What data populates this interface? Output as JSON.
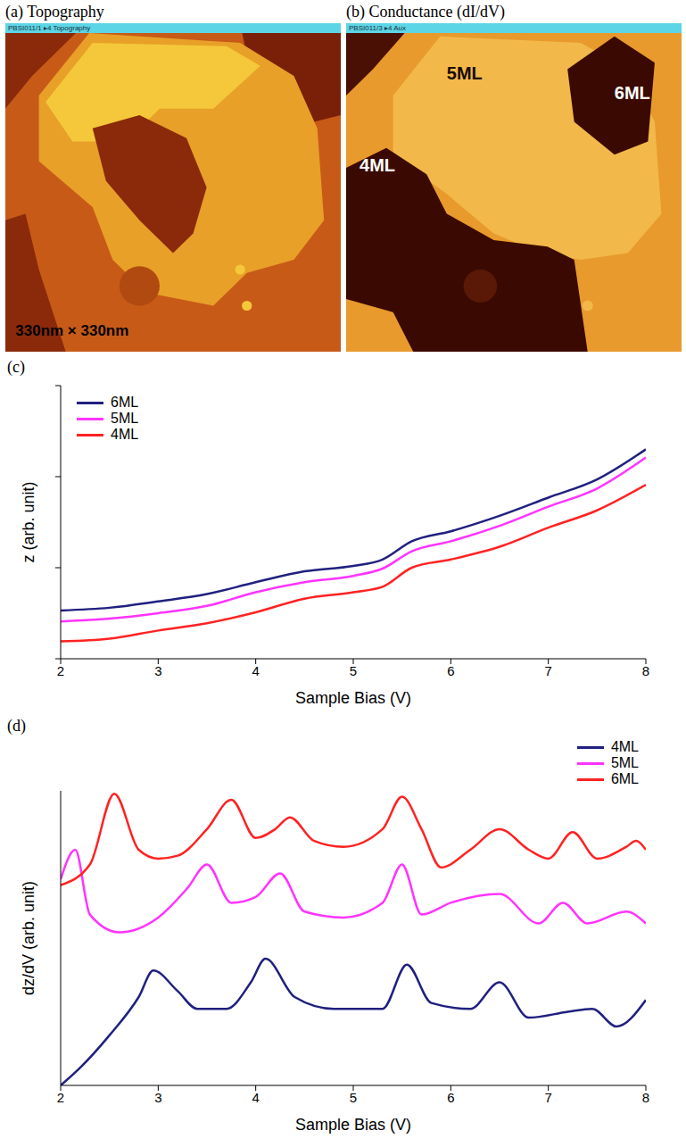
{
  "images": [
    {
      "title": "(a) Topography",
      "header": "PBSI011/1 ▸4 Topography",
      "annotations": [
        "330nm × 330nm"
      ]
    },
    {
      "title": "(b) Conductance (dI/dV)",
      "header": "PBSI011/3 ▸4 Aux",
      "annotations": [
        "5ML",
        "6ML",
        "4ML"
      ]
    }
  ],
  "chart_data": [
    {
      "type": "line",
      "title": "(c)",
      "x_label": "Sample Bias (V)",
      "y_label": "z (arb. unit)",
      "xlim": [
        2,
        8
      ],
      "xticks": [
        2,
        3,
        4,
        5,
        6,
        7,
        8
      ],
      "ylim": [
        0,
        3
      ],
      "yticks": [
        0,
        1,
        2,
        3
      ],
      "tick_labels": "x",
      "grid": false,
      "legend": "upper left",
      "x": [
        2,
        2.5,
        3,
        3.5,
        4,
        4.5,
        5,
        5.3,
        5.6,
        6,
        6.5,
        7,
        7.5,
        8
      ],
      "series": [
        {
          "name": "6ML",
          "color": "#202080",
          "values": [
            0.53,
            0.56,
            0.63,
            0.71,
            0.84,
            0.96,
            1.02,
            1.09,
            1.29,
            1.4,
            1.57,
            1.77,
            1.97,
            2.3
          ]
        },
        {
          "name": "5ML",
          "color": "#ff33ff",
          "values": [
            0.41,
            0.44,
            0.5,
            0.58,
            0.73,
            0.84,
            0.91,
            0.99,
            1.18,
            1.29,
            1.46,
            1.67,
            1.87,
            2.21
          ]
        },
        {
          "name": "4ML",
          "color": "#ff2222",
          "values": [
            0.19,
            0.22,
            0.31,
            0.39,
            0.51,
            0.66,
            0.73,
            0.79,
            1.0,
            1.09,
            1.23,
            1.44,
            1.63,
            1.91
          ]
        }
      ]
    },
    {
      "type": "line",
      "title": "(d)",
      "x_label": "Sample Bias (V)",
      "y_label": "dz/dV (arb. unit)",
      "xlim": [
        2,
        8
      ],
      "xticks": [
        2,
        3,
        4,
        5,
        6,
        7,
        8
      ],
      "ylim": [
        0,
        10
      ],
      "yticks": [],
      "tick_labels": "x",
      "grid": false,
      "legend": "upper right",
      "series": [
        {
          "name": "4ML",
          "color": "#202080",
          "x": [
            2.0,
            2.2,
            2.5,
            2.8,
            2.95,
            3.2,
            3.4,
            3.7,
            3.95,
            4.1,
            4.4,
            4.8,
            5.3,
            5.55,
            5.8,
            6.2,
            6.5,
            6.8,
            7.2,
            7.45,
            7.7,
            8.0
          ],
          "values": [
            0.0,
            0.6,
            1.7,
            3.0,
            3.9,
            3.2,
            2.6,
            2.6,
            3.5,
            4.3,
            3.0,
            2.6,
            2.6,
            4.1,
            2.8,
            2.6,
            3.5,
            2.3,
            2.5,
            2.6,
            2.0,
            2.9
          ]
        },
        {
          "name": "5ML",
          "color": "#ff33ff",
          "x": [
            2.0,
            2.15,
            2.3,
            2.6,
            3.0,
            3.3,
            3.5,
            3.75,
            4.0,
            4.25,
            4.5,
            4.9,
            5.3,
            5.5,
            5.7,
            6.0,
            6.5,
            6.9,
            7.15,
            7.4,
            7.8,
            8.0
          ],
          "values": [
            7.0,
            8.0,
            5.8,
            5.2,
            5.7,
            6.7,
            7.5,
            6.2,
            6.4,
            7.2,
            5.9,
            5.7,
            6.2,
            7.5,
            5.8,
            6.2,
            6.5,
            5.5,
            6.2,
            5.5,
            5.9,
            5.5
          ]
        },
        {
          "name": "6ML",
          "color": "#ff2222",
          "x": [
            2.0,
            2.3,
            2.55,
            2.8,
            3.0,
            3.2,
            3.5,
            3.75,
            4.0,
            4.2,
            4.35,
            4.6,
            4.9,
            5.3,
            5.5,
            5.7,
            5.9,
            6.2,
            6.5,
            6.8,
            7.0,
            7.25,
            7.5,
            7.8,
            7.9,
            8.0
          ],
          "values": [
            6.8,
            7.5,
            9.9,
            8.0,
            7.7,
            7.8,
            8.7,
            9.7,
            8.4,
            8.7,
            9.1,
            8.3,
            8.1,
            8.7,
            9.8,
            8.7,
            7.4,
            8.0,
            8.7,
            8.0,
            7.7,
            8.6,
            7.7,
            8.1,
            8.3,
            8.0
          ]
        }
      ]
    }
  ]
}
